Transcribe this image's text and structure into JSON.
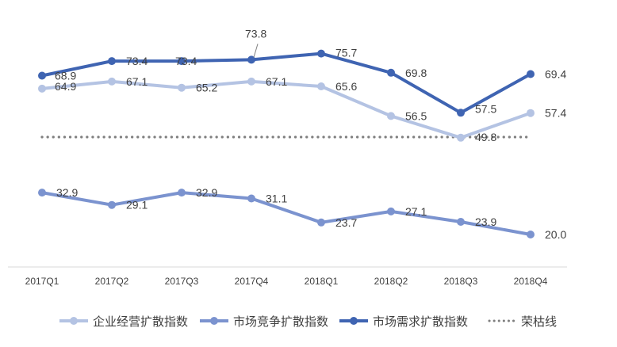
{
  "chart_data": {
    "type": "line",
    "categories": [
      "2017Q1",
      "2017Q2",
      "2017Q3",
      "2017Q4",
      "2018Q1",
      "2018Q2",
      "2018Q3",
      "2018Q4"
    ],
    "series": [
      {
        "name": "企业经营扩散指数",
        "values": [
          64.9,
          67.1,
          65.2,
          67.1,
          65.6,
          56.5,
          49.8,
          57.4
        ],
        "color": "#b4c3e3",
        "marker": "circle"
      },
      {
        "name": "市场竞争扩散指数",
        "values": [
          32.9,
          29.1,
          32.9,
          31.1,
          23.7,
          27.1,
          23.9,
          20.0
        ],
        "color": "#7b93cf",
        "marker": "circle"
      },
      {
        "name": "市场需求扩散指数",
        "values": [
          68.9,
          73.4,
          73.4,
          73.8,
          75.7,
          69.8,
          57.5,
          69.4
        ],
        "color": "#3f64b2",
        "marker": "circle"
      },
      {
        "name": "荣枯线",
        "values": [
          50,
          50,
          50,
          50,
          50,
          50,
          50,
          50
        ],
        "color": "#7f7f7f",
        "style": "dotted"
      }
    ],
    "legend_position": "bottom",
    "grid": false
  }
}
